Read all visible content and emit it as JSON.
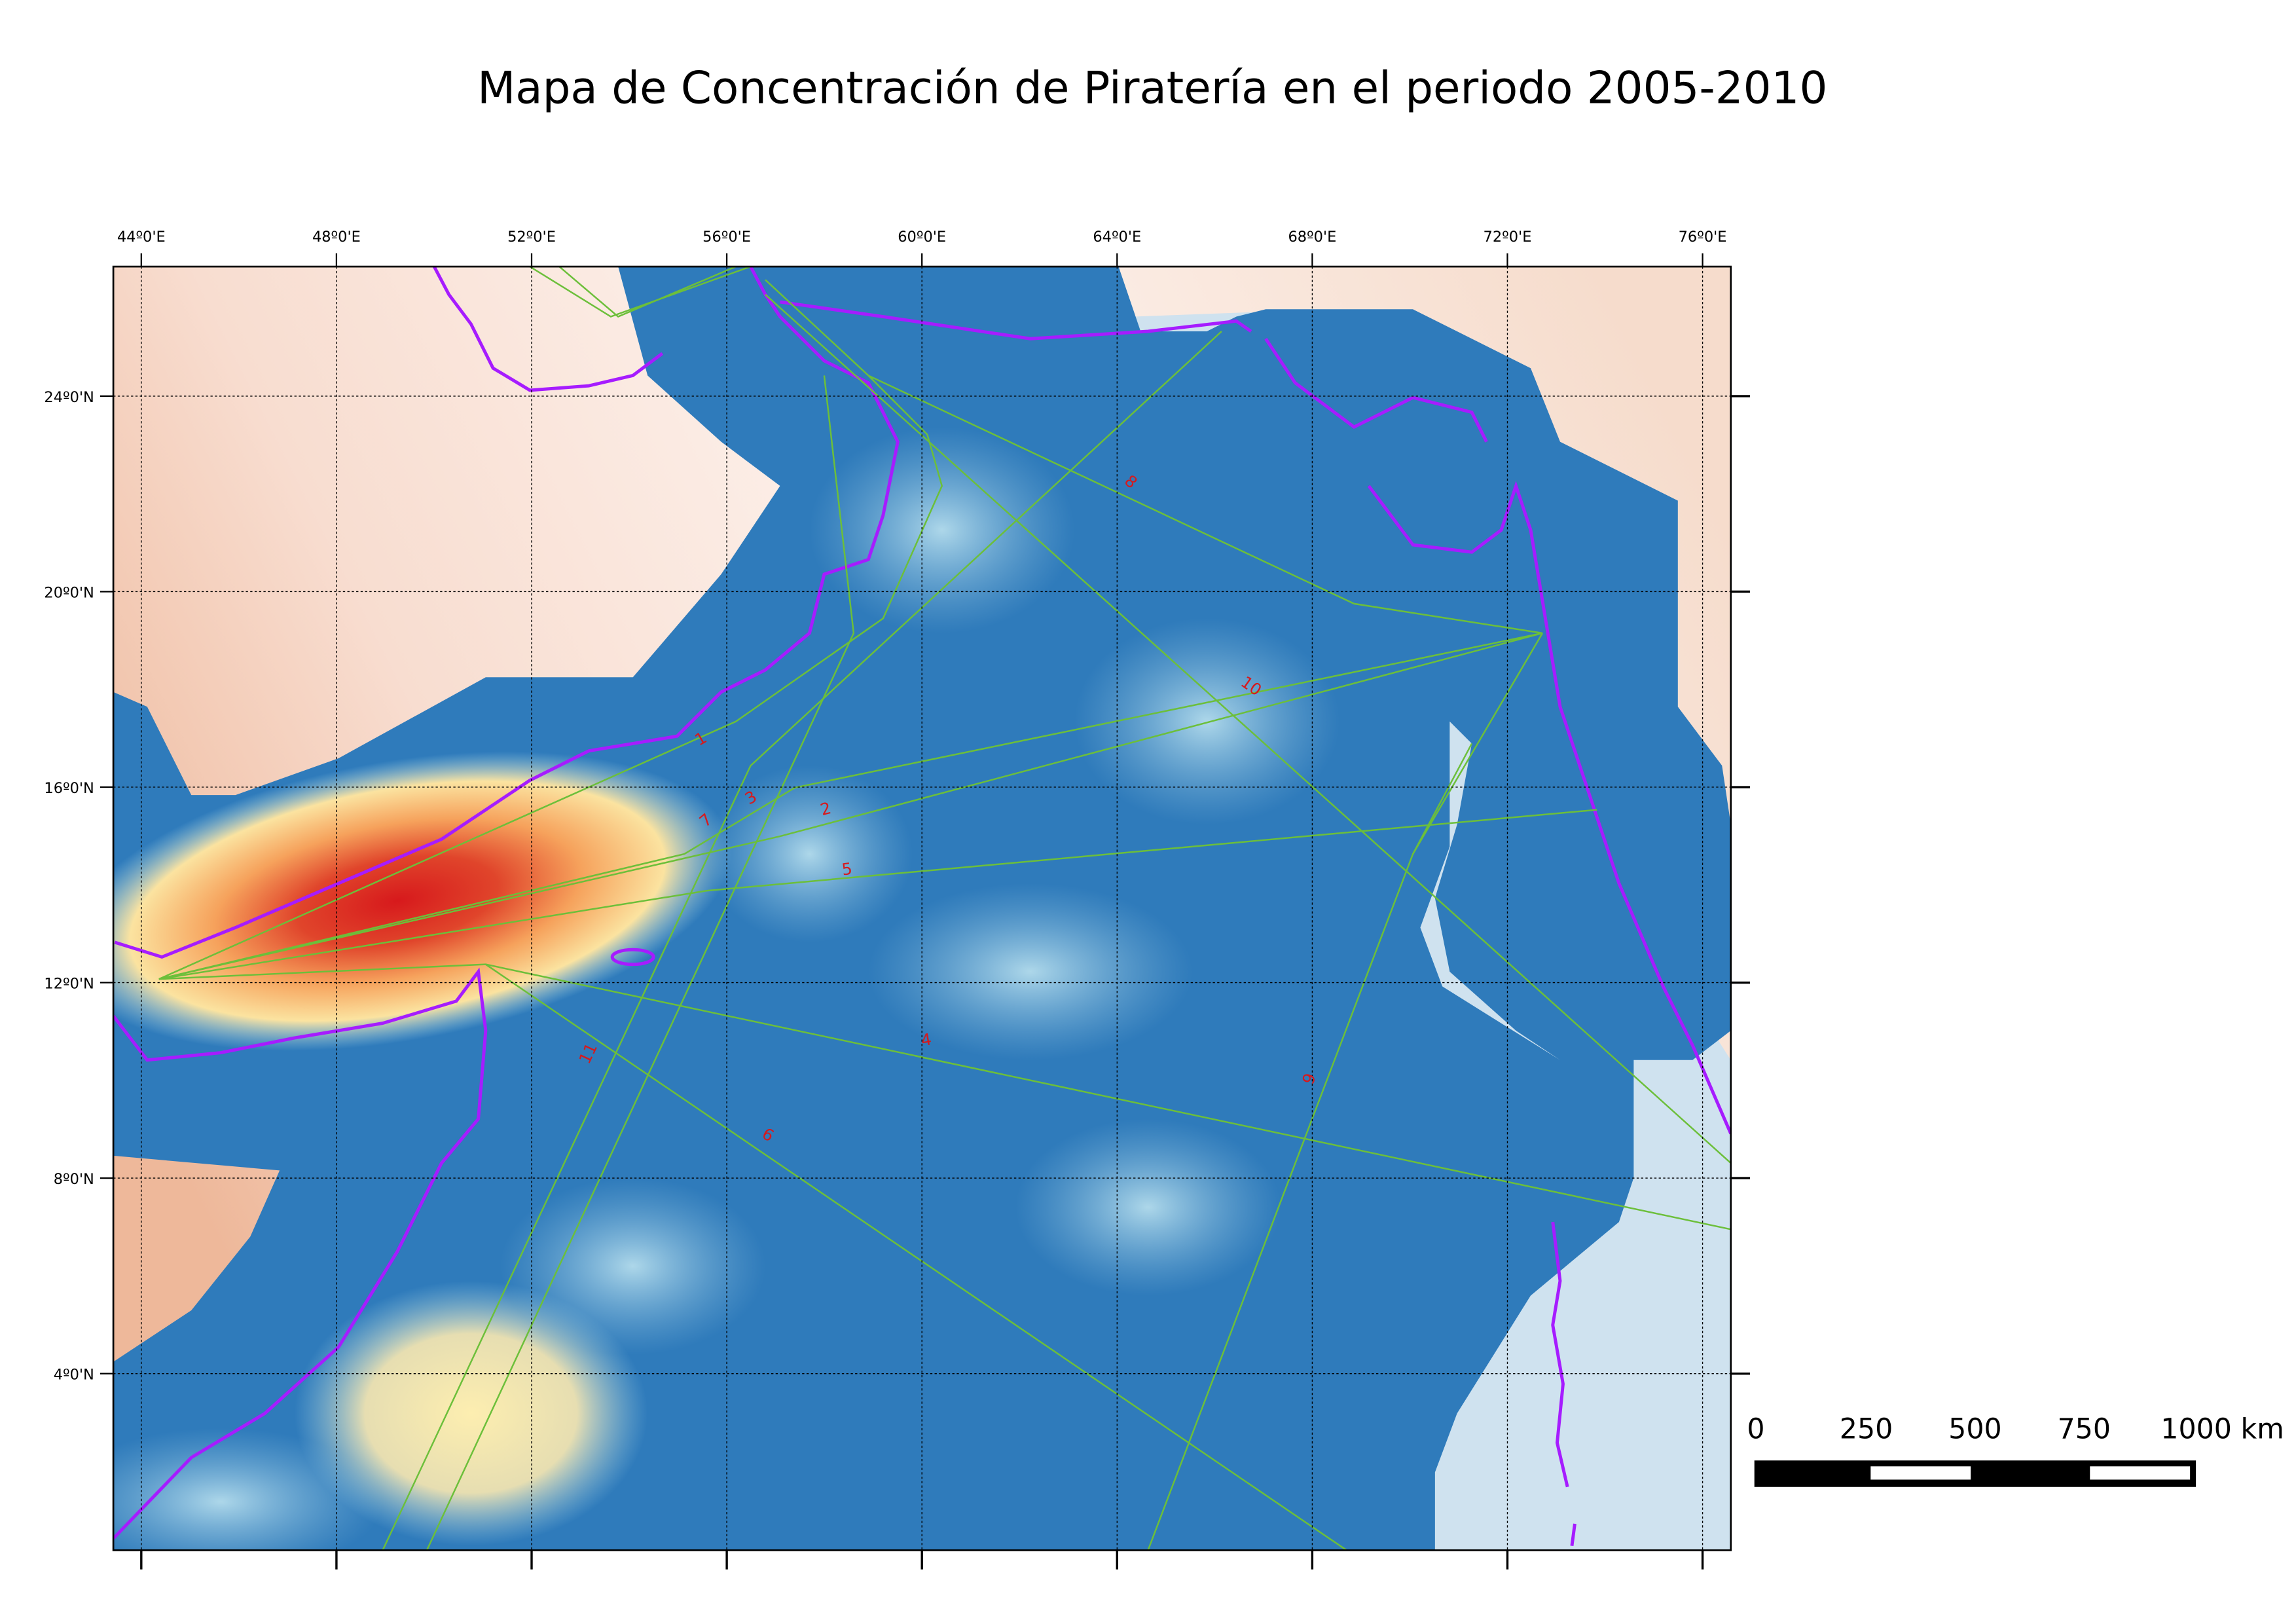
{
  "title": "Mapa de Concentración de Piratería en el periodo 2005-2010",
  "map": {
    "longitude_labels": [
      "44º0'E",
      "48º0'E",
      "52º0'E",
      "56º0'E",
      "60º0'E",
      "64º0'E",
      "68º0'E",
      "72º0'E",
      "76º0'E"
    ],
    "latitude_labels": [
      "24º0'N",
      "20º0'N",
      "16º0'N",
      "12º0'N",
      "8º0'N",
      "4º0'N"
    ],
    "route_labels": [
      "1",
      "7",
      "3",
      "2",
      "5",
      "4",
      "6",
      "11",
      "8",
      "10",
      "9"
    ]
  },
  "scale_bar": {
    "labels": [
      "0",
      "250",
      "500",
      "750",
      "1000 km"
    ]
  }
}
